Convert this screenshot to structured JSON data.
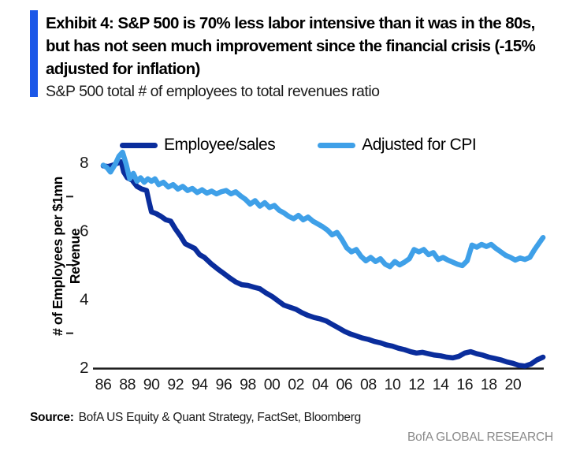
{
  "header": {
    "title": "Exhibit 4: S&P 500 is 70% less labor intensive than it was in the 80s, but has not seen much improvement since the financial crisis (-15% adjusted for inflation)",
    "subtitle": "S&P 500 total # of employees to total revenues ratio",
    "accent_color": "#1b57e8"
  },
  "source": {
    "label": "Source:",
    "text": "BofA US Equity & Quant Strategy, FactSet, Bloomberg"
  },
  "footer": {
    "brand": "BofA GLOBAL RESEARCH",
    "color": "#8a8a8a"
  },
  "chart_data": {
    "type": "line",
    "title": "S&P 500 total # of employees to total revenues ratio",
    "ylabel_line1": "# of Employees per $1mn",
    "ylabel_line2": "Revenue",
    "xlabel": "",
    "ylim": [
      2,
      8.6
    ],
    "y_ticks": [
      2,
      4,
      6,
      8
    ],
    "y_minor_ticks": [
      3,
      5,
      7
    ],
    "x_tick_labels": [
      "86",
      "88",
      "90",
      "92",
      "94",
      "96",
      "98",
      "00",
      "02",
      "04",
      "06",
      "08",
      "10",
      "12",
      "14",
      "16",
      "18",
      "20"
    ],
    "x_tick_years": [
      1986,
      1988,
      1990,
      1992,
      1994,
      1996,
      1998,
      2000,
      2002,
      2004,
      2006,
      2008,
      2010,
      2012,
      2014,
      2016,
      2018,
      2020
    ],
    "xlim": [
      1986,
      2022.5
    ],
    "grid": false,
    "legend_position": "top",
    "axis_color": "#1a1a1a",
    "series": [
      {
        "name": "Employee/sales",
        "color": "#0a2d9c",
        "points": [
          [
            1986.0,
            7.9
          ],
          [
            1986.4,
            7.88
          ],
          [
            1986.8,
            7.92
          ],
          [
            1987.2,
            7.98
          ],
          [
            1987.5,
            8.02
          ],
          [
            1987.7,
            7.72
          ],
          [
            1988.0,
            7.55
          ],
          [
            1988.4,
            7.48
          ],
          [
            1988.8,
            7.3
          ],
          [
            1989.2,
            7.22
          ],
          [
            1989.6,
            7.18
          ],
          [
            1989.8,
            6.85
          ],
          [
            1990.0,
            6.55
          ],
          [
            1990.4,
            6.5
          ],
          [
            1990.8,
            6.42
          ],
          [
            1991.2,
            6.32
          ],
          [
            1991.6,
            6.28
          ],
          [
            1992.0,
            6.05
          ],
          [
            1992.4,
            5.85
          ],
          [
            1992.8,
            5.62
          ],
          [
            1993.2,
            5.55
          ],
          [
            1993.6,
            5.48
          ],
          [
            1994.0,
            5.3
          ],
          [
            1994.4,
            5.22
          ],
          [
            1995.0,
            5.02
          ],
          [
            1995.5,
            4.88
          ],
          [
            1996.0,
            4.75
          ],
          [
            1996.5,
            4.62
          ],
          [
            1997.0,
            4.5
          ],
          [
            1997.5,
            4.42
          ],
          [
            1998.0,
            4.4
          ],
          [
            1998.5,
            4.35
          ],
          [
            1999.0,
            4.3
          ],
          [
            1999.5,
            4.18
          ],
          [
            2000.0,
            4.08
          ],
          [
            2000.5,
            3.95
          ],
          [
            2001.0,
            3.82
          ],
          [
            2001.5,
            3.76
          ],
          [
            2002.0,
            3.7
          ],
          [
            2002.5,
            3.6
          ],
          [
            2003.0,
            3.52
          ],
          [
            2003.5,
            3.46
          ],
          [
            2004.0,
            3.42
          ],
          [
            2004.5,
            3.36
          ],
          [
            2005.0,
            3.26
          ],
          [
            2005.5,
            3.16
          ],
          [
            2006.0,
            3.06
          ],
          [
            2006.5,
            2.98
          ],
          [
            2007.0,
            2.92
          ],
          [
            2007.5,
            2.86
          ],
          [
            2008.0,
            2.82
          ],
          [
            2008.5,
            2.76
          ],
          [
            2009.0,
            2.72
          ],
          [
            2009.5,
            2.66
          ],
          [
            2010.0,
            2.62
          ],
          [
            2010.5,
            2.56
          ],
          [
            2011.0,
            2.52
          ],
          [
            2011.5,
            2.46
          ],
          [
            2012.0,
            2.42
          ],
          [
            2012.5,
            2.44
          ],
          [
            2013.0,
            2.4
          ],
          [
            2013.5,
            2.36
          ],
          [
            2014.0,
            2.34
          ],
          [
            2014.5,
            2.3
          ],
          [
            2015.0,
            2.28
          ],
          [
            2015.5,
            2.32
          ],
          [
            2016.0,
            2.42
          ],
          [
            2016.5,
            2.46
          ],
          [
            2017.0,
            2.4
          ],
          [
            2017.5,
            2.36
          ],
          [
            2018.0,
            2.3
          ],
          [
            2018.5,
            2.26
          ],
          [
            2019.0,
            2.22
          ],
          [
            2019.5,
            2.16
          ],
          [
            2020.0,
            2.12
          ],
          [
            2020.5,
            2.06
          ],
          [
            2021.0,
            2.04
          ],
          [
            2021.5,
            2.1
          ],
          [
            2022.0,
            2.22
          ],
          [
            2022.5,
            2.3
          ]
        ]
      },
      {
        "name": "Adjusted for CPI",
        "color": "#3fa0e8",
        "points": [
          [
            1986.0,
            7.92
          ],
          [
            1986.3,
            7.85
          ],
          [
            1986.6,
            7.72
          ],
          [
            1987.0,
            7.95
          ],
          [
            1987.3,
            8.18
          ],
          [
            1987.6,
            8.3
          ],
          [
            1987.9,
            7.95
          ],
          [
            1988.2,
            7.52
          ],
          [
            1988.5,
            7.68
          ],
          [
            1988.8,
            7.45
          ],
          [
            1989.1,
            7.55
          ],
          [
            1989.4,
            7.42
          ],
          [
            1989.7,
            7.52
          ],
          [
            1990.0,
            7.45
          ],
          [
            1990.3,
            7.52
          ],
          [
            1990.6,
            7.35
          ],
          [
            1991.0,
            7.42
          ],
          [
            1991.4,
            7.28
          ],
          [
            1991.8,
            7.35
          ],
          [
            1992.2,
            7.22
          ],
          [
            1992.6,
            7.3
          ],
          [
            1993.0,
            7.18
          ],
          [
            1993.4,
            7.24
          ],
          [
            1993.8,
            7.12
          ],
          [
            1994.2,
            7.2
          ],
          [
            1994.6,
            7.1
          ],
          [
            1995.0,
            7.16
          ],
          [
            1995.4,
            7.08
          ],
          [
            1995.8,
            7.14
          ],
          [
            1996.2,
            7.18
          ],
          [
            1996.6,
            7.08
          ],
          [
            1997.0,
            7.14
          ],
          [
            1997.4,
            7.02
          ],
          [
            1997.8,
            6.92
          ],
          [
            1998.2,
            6.78
          ],
          [
            1998.6,
            6.88
          ],
          [
            1999.0,
            6.72
          ],
          [
            1999.4,
            6.82
          ],
          [
            1999.8,
            6.68
          ],
          [
            2000.2,
            6.74
          ],
          [
            2000.6,
            6.6
          ],
          [
            2001.0,
            6.52
          ],
          [
            2001.4,
            6.42
          ],
          [
            2001.8,
            6.35
          ],
          [
            2002.2,
            6.45
          ],
          [
            2002.6,
            6.32
          ],
          [
            2003.0,
            6.4
          ],
          [
            2003.4,
            6.28
          ],
          [
            2003.8,
            6.2
          ],
          [
            2004.2,
            6.12
          ],
          [
            2004.6,
            6.02
          ],
          [
            2005.0,
            5.88
          ],
          [
            2005.4,
            5.95
          ],
          [
            2005.8,
            5.75
          ],
          [
            2006.2,
            5.5
          ],
          [
            2006.6,
            5.38
          ],
          [
            2007.0,
            5.45
          ],
          [
            2007.4,
            5.25
          ],
          [
            2007.8,
            5.12
          ],
          [
            2008.2,
            5.22
          ],
          [
            2008.6,
            5.1
          ],
          [
            2009.0,
            5.18
          ],
          [
            2009.4,
            5.02
          ],
          [
            2009.8,
            4.95
          ],
          [
            2010.2,
            5.1
          ],
          [
            2010.6,
            5.0
          ],
          [
            2011.0,
            5.08
          ],
          [
            2011.4,
            5.18
          ],
          [
            2011.8,
            5.45
          ],
          [
            2012.2,
            5.38
          ],
          [
            2012.6,
            5.45
          ],
          [
            2013.0,
            5.3
          ],
          [
            2013.4,
            5.36
          ],
          [
            2013.8,
            5.16
          ],
          [
            2014.2,
            5.22
          ],
          [
            2014.6,
            5.14
          ],
          [
            2015.0,
            5.08
          ],
          [
            2015.4,
            5.02
          ],
          [
            2015.8,
            4.98
          ],
          [
            2016.2,
            5.12
          ],
          [
            2016.6,
            5.58
          ],
          [
            2017.0,
            5.52
          ],
          [
            2017.4,
            5.6
          ],
          [
            2017.8,
            5.54
          ],
          [
            2018.2,
            5.6
          ],
          [
            2018.6,
            5.48
          ],
          [
            2019.0,
            5.38
          ],
          [
            2019.4,
            5.28
          ],
          [
            2019.8,
            5.22
          ],
          [
            2020.2,
            5.14
          ],
          [
            2020.6,
            5.2
          ],
          [
            2021.0,
            5.16
          ],
          [
            2021.4,
            5.22
          ],
          [
            2021.8,
            5.45
          ],
          [
            2022.2,
            5.65
          ],
          [
            2022.5,
            5.8
          ]
        ]
      }
    ]
  }
}
